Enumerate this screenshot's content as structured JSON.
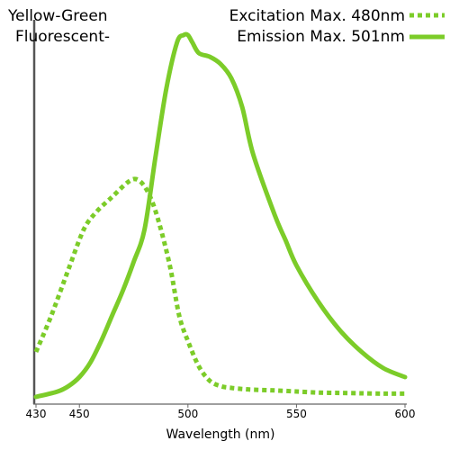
{
  "chart_data": {
    "type": "line",
    "title_lines": [
      "Yellow-Green",
      "Fluorescent-"
    ],
    "xlabel": "Wavelength (nm)",
    "ylabel": "",
    "xlim": [
      430,
      600
    ],
    "ylim": [
      0,
      100
    ],
    "xticks": [
      430,
      450,
      500,
      550,
      600
    ],
    "grid": false,
    "legend_position": "top-right",
    "series": [
      {
        "name": "Excitation Max. 480nm",
        "style": "dotted",
        "color": "#7ccc29",
        "x": [
          430,
          437,
          445,
          452,
          458,
          465,
          472,
          476,
          480,
          484,
          488,
          492,
          496,
          500,
          505,
          510,
          515,
          520,
          525,
          530,
          540,
          550,
          560,
          570,
          580,
          590,
          600
        ],
        "y": [
          13,
          23,
          36,
          47,
          52,
          56,
          60,
          61,
          59,
          54,
          46,
          36,
          23,
          16,
          9,
          5,
          3.5,
          3,
          2.7,
          2.5,
          2.3,
          2,
          1.7,
          1.6,
          1.5,
          1.4,
          1.4
        ]
      },
      {
        "name": "Emission Max. 501nm",
        "style": "solid",
        "color": "#7ccc29",
        "x": [
          430,
          440,
          445,
          450,
          455,
          460,
          465,
          470,
          475,
          480,
          485,
          490,
          495,
          498,
          500,
          502,
          505,
          510,
          515,
          520,
          525,
          530,
          540,
          545,
          550,
          560,
          570,
          580,
          590,
          600
        ],
        "y": [
          0.5,
          2,
          3.5,
          6,
          10,
          16,
          23,
          30,
          38,
          47,
          67,
          86,
          99,
          101,
          101,
          99,
          96,
          95,
          93,
          89,
          81,
          68,
          51,
          44,
          37,
          27,
          19,
          13,
          8.5,
          6
        ]
      }
    ]
  }
}
